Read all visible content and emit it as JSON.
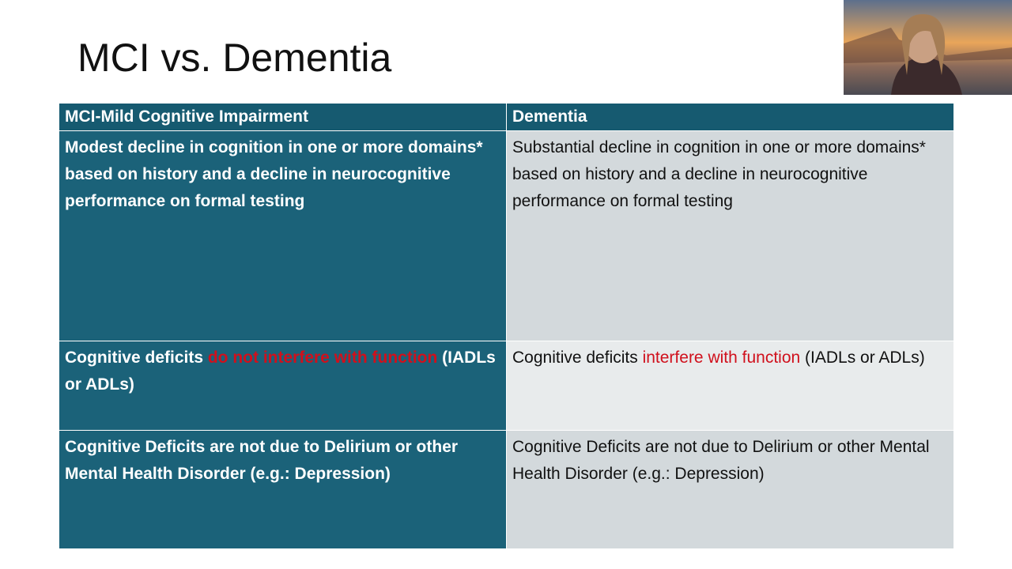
{
  "title": "MCI vs. Dementia",
  "table": {
    "headers": [
      "MCI-Mild Cognitive Impairment",
      "Dementia"
    ],
    "rows": [
      [
        [
          {
            "text": "Modest decline in cognition in one or more domains* based on history and a decline in neurocognitive performance on formal testing"
          }
        ],
        [
          {
            "text": "Substantial decline in cognition in one or more domains* based on history and a decline in neurocognitive performance on formal testing"
          }
        ]
      ],
      [
        [
          {
            "text": "Cognitive deficits "
          },
          {
            "text": "do not interfere with function",
            "emphasis": true
          },
          {
            "text": " (IADLs or ADLs)"
          }
        ],
        [
          {
            "text": "Cognitive deficits "
          },
          {
            "text": "interfere with function",
            "emphasis": true
          },
          {
            "text": " (IADLs or ADLs)"
          }
        ]
      ],
      [
        [
          {
            "text": "Cognitive Deficits are not due to Delirium or other Mental Health Disorder (e.g.: Depression)"
          }
        ],
        [
          {
            "text": "Cognitive Deficits are not due to Delirium or other Mental Health Disorder (e.g.: Depression)"
          }
        ]
      ]
    ]
  }
}
